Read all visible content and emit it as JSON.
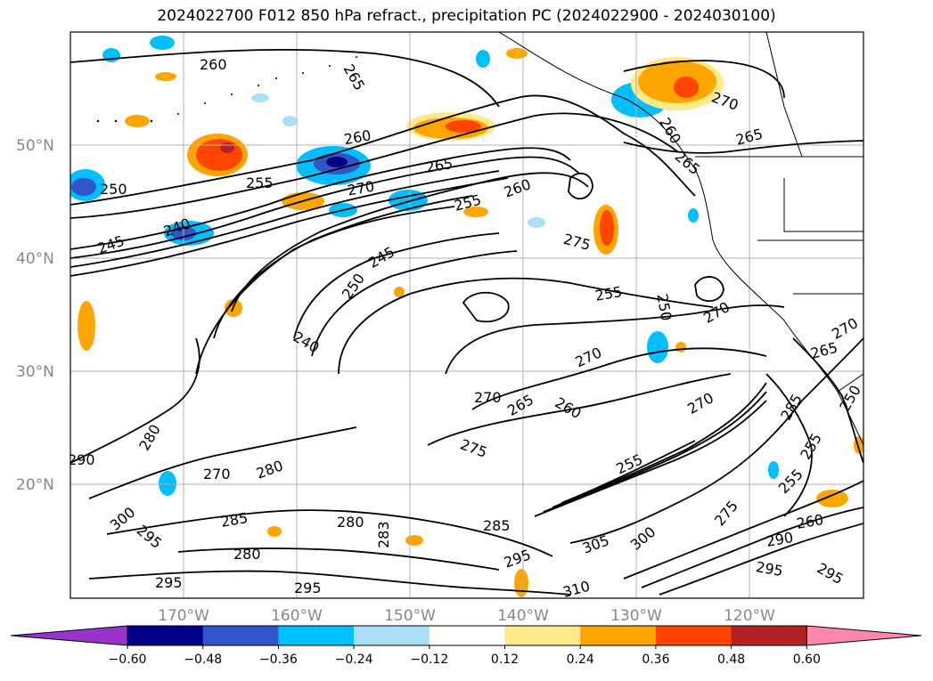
{
  "title": "2024022700 F012 850 hPa refract., precipitation PC (2024022900 - 2024030100)",
  "map": {
    "lat_labels": [
      "50°N",
      "40°N",
      "30°N",
      "20°N"
    ],
    "lon_labels": [
      "170°W",
      "160°W",
      "150°W",
      "140°W",
      "130°W",
      "120°W"
    ],
    "contour_labels": [
      {
        "text": "260"
      },
      {
        "text": "265"
      },
      {
        "text": "260"
      },
      {
        "text": "250"
      },
      {
        "text": "255"
      },
      {
        "text": "265"
      },
      {
        "text": "270"
      },
      {
        "text": "240"
      },
      {
        "text": "245"
      },
      {
        "text": "255"
      },
      {
        "text": "260"
      },
      {
        "text": "250"
      },
      {
        "text": "245"
      },
      {
        "text": "275"
      },
      {
        "text": "255"
      },
      {
        "text": "250"
      },
      {
        "text": "240"
      },
      {
        "text": "270"
      },
      {
        "text": "270"
      },
      {
        "text": "265"
      },
      {
        "text": "260"
      },
      {
        "text": "280"
      },
      {
        "text": "290"
      },
      {
        "text": "270"
      },
      {
        "text": "280"
      },
      {
        "text": "275"
      },
      {
        "text": "255"
      },
      {
        "text": "270"
      },
      {
        "text": "285"
      },
      {
        "text": "280"
      },
      {
        "text": "283"
      },
      {
        "text": "285"
      },
      {
        "text": "300"
      },
      {
        "text": "295"
      },
      {
        "text": "305"
      },
      {
        "text": "300"
      },
      {
        "text": "310"
      },
      {
        "text": "295"
      },
      {
        "text": "295"
      },
      {
        "text": "280"
      },
      {
        "text": "295"
      },
      {
        "text": "270"
      },
      {
        "text": "265"
      },
      {
        "text": "265"
      },
      {
        "text": "270"
      },
      {
        "text": "270"
      },
      {
        "text": "265"
      },
      {
        "text": "285"
      },
      {
        "text": "255"
      },
      {
        "text": "255"
      },
      {
        "text": "275"
      },
      {
        "text": "290"
      },
      {
        "text": "260"
      },
      {
        "text": "295"
      },
      {
        "text": "295"
      },
      {
        "text": "260"
      },
      {
        "text": "250"
      }
    ]
  },
  "colorbar": {
    "ticks": [
      "−0.60",
      "−0.48",
      "−0.36",
      "−0.24",
      "−0.12",
      "0.12",
      "0.24",
      "0.36",
      "0.48",
      "0.60"
    ],
    "colors": [
      "#9933cc",
      "#00008b",
      "#3355cc",
      "#00bfff",
      "#aadff7",
      "#ffffff",
      "#ffe98a",
      "#ffa500",
      "#ff4500",
      "#b22222",
      "#ff88aa"
    ]
  }
}
